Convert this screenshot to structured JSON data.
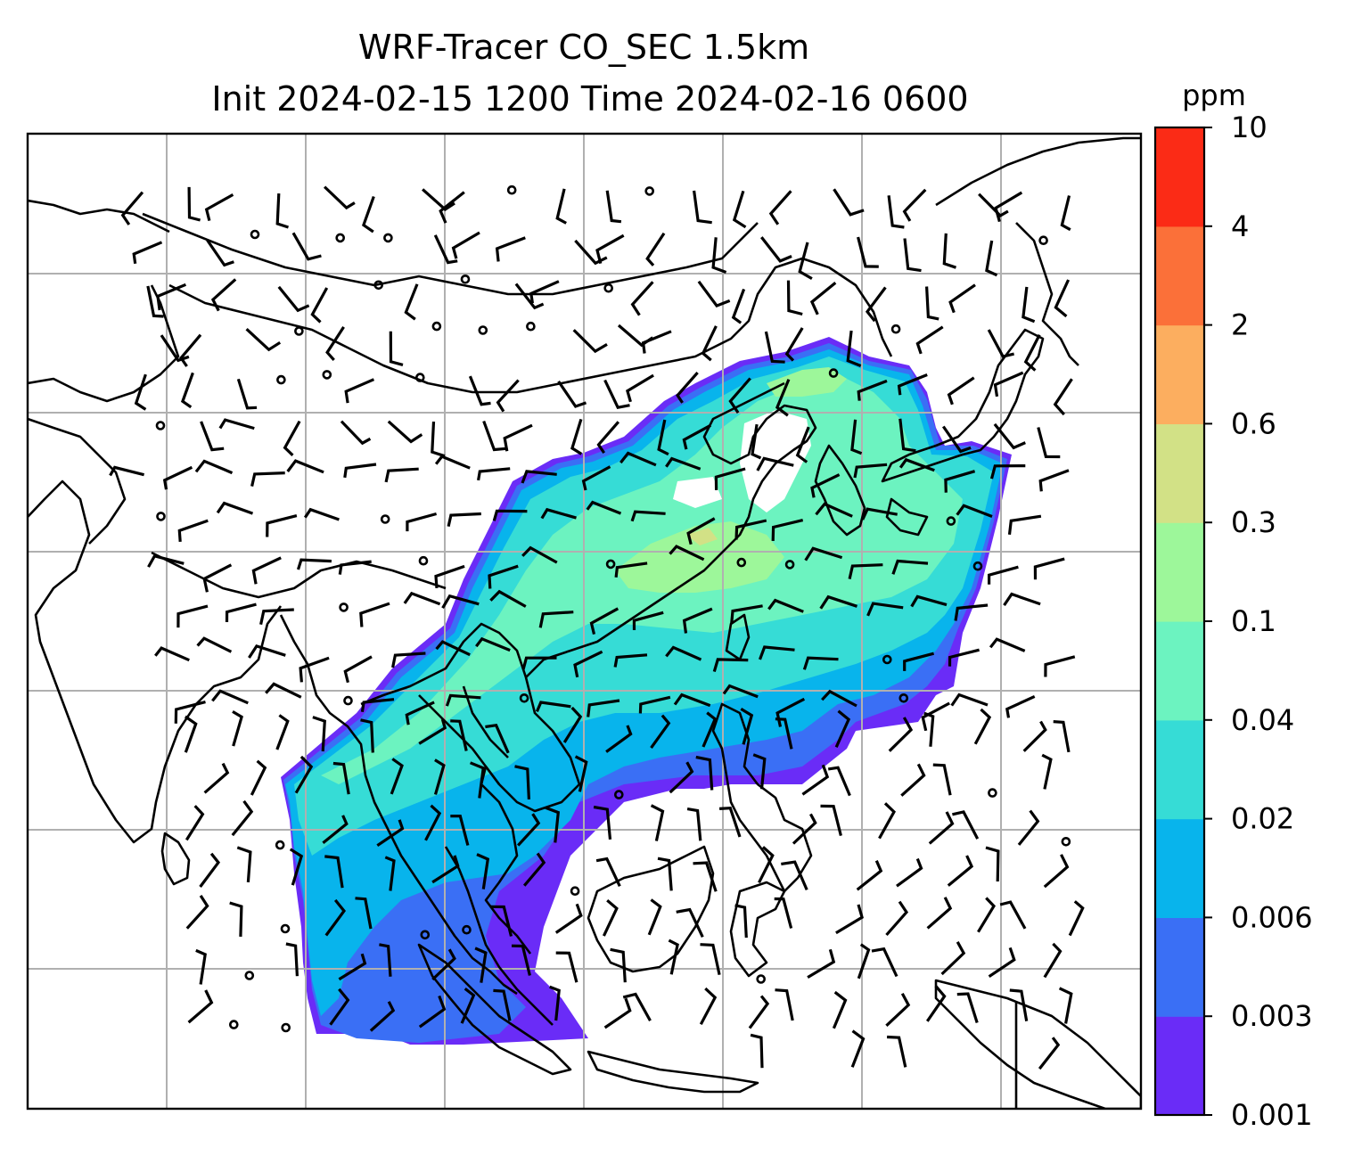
{
  "title": {
    "line1": "WRF-Tracer CO_SEC 1.5km",
    "line2": "Init 2024-02-15 1200 Time 2024-02-16 0600"
  },
  "colorbar": {
    "unit_label": "ppm",
    "tick_labels": [
      "0.001",
      "0.003",
      "0.006",
      "0.02",
      "0.04",
      "0.1",
      "0.3",
      "0.6",
      "2",
      "4",
      "10"
    ],
    "colors": [
      "#6a2cf7",
      "#3a6ff5",
      "#08b4ec",
      "#36dcd6",
      "#6cf3c0",
      "#9df79a",
      "#d2e186",
      "#fcae5f",
      "#fb7039",
      "#fb2b16"
    ]
  },
  "map": {
    "field": "CO_SEC tracer concentration",
    "gridline_color": "#b0b0b0",
    "coastline_color": "#000000",
    "overlay": "wind barbs"
  }
}
